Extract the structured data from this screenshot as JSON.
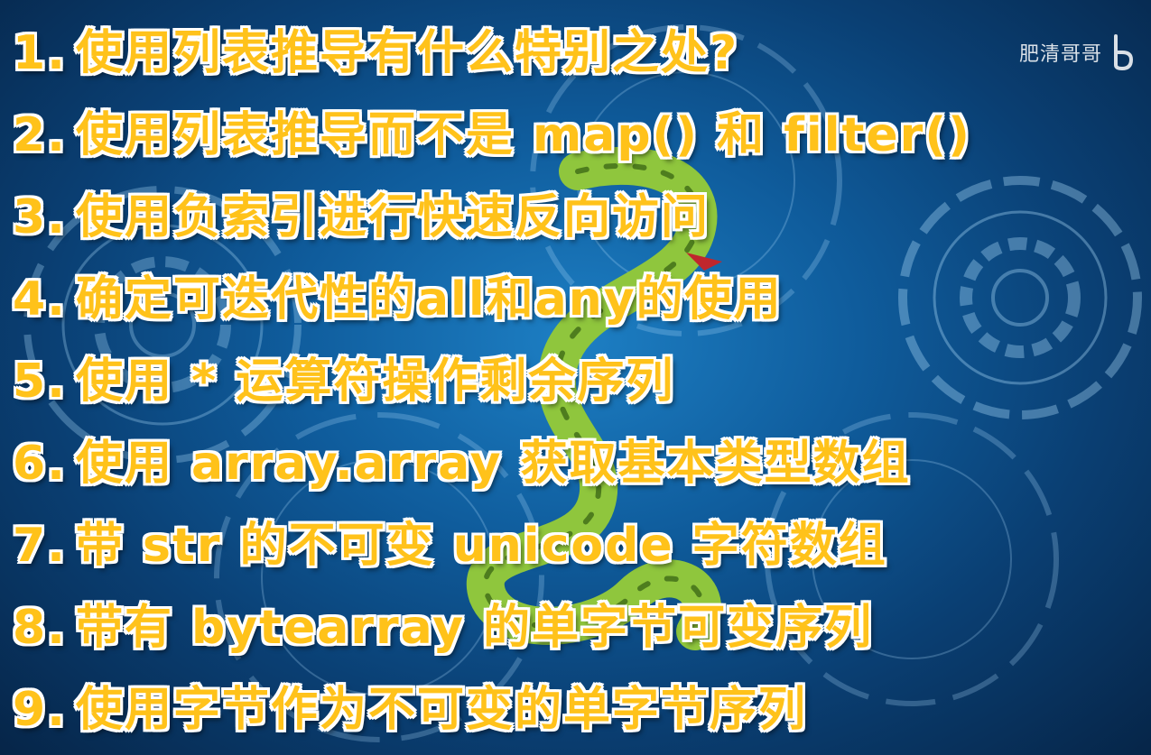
{
  "watermark": {
    "text": "肥清哥哥",
    "logo_icon": "bilibili-logo-icon"
  },
  "items": [
    {
      "num": "1.",
      "text": "使用列表推导有什么特别之处?"
    },
    {
      "num": "2.",
      "text": "使用列表推导而不是 map() 和 filter()"
    },
    {
      "num": "3.",
      "text": "使用负索引进行快速反向访问"
    },
    {
      "num": "4.",
      "text": "确定可迭代性的all和any的使用"
    },
    {
      "num": "5.",
      "text": "使用 * 运算符操作剩余序列"
    },
    {
      "num": "6.",
      "text": "使用 array.array 获取基本类型数组"
    },
    {
      "num": "7.",
      "text": "带 str 的不可变 unicode 字符数组"
    },
    {
      "num": "8.",
      "text": "带有 bytearray 的单字节可变序列"
    },
    {
      "num": "9.",
      "text": "使用字节作为不可变的单字节序列"
    }
  ],
  "colors": {
    "text_fill": "#ffc21a",
    "text_outline": "#ffffff",
    "background_blue": "#0f5c9c",
    "snake_green": "#8fc63d"
  },
  "decorations": [
    "tech-circle-icon",
    "python-snake-icon"
  ]
}
